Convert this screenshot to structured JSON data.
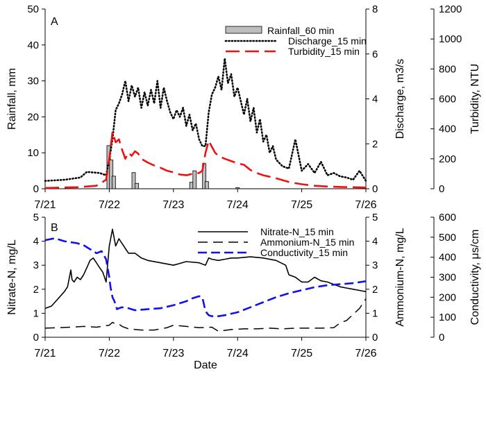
{
  "chart_data": [
    {
      "panel_label": "A",
      "type": "line",
      "x_ticks": [
        "7/21",
        "7/22",
        "7/23",
        "7/24",
        "7/25",
        "7/26"
      ],
      "xlim": [
        0,
        5
      ],
      "axes": {
        "left": {
          "label": "Rainfall, mm",
          "lim": [
            0,
            50
          ],
          "ticks": [
            0,
            10,
            20,
            30,
            40,
            50
          ]
        },
        "right1": {
          "label": "Discharge, m3/s",
          "lim": [
            0,
            8
          ],
          "ticks": [
            0,
            2,
            4,
            6,
            8
          ]
        },
        "right2": {
          "label": "Turbidity, NTU",
          "lim": [
            0,
            1200
          ],
          "ticks": [
            0,
            200,
            400,
            600,
            800,
            1000,
            1200
          ]
        }
      },
      "legend": [
        "Rainfall_60 min",
        "Discharge_15 min",
        "Turbidity_15 min"
      ],
      "series": [
        {
          "name": "Rainfall_60 min",
          "kind": "bar",
          "axis": "left",
          "color": "#bdbdbd",
          "x": [
            0.99,
            1.03,
            1.07,
            1.38,
            1.43,
            2.28,
            2.33,
            2.48,
            2.52,
            3.0
          ],
          "values": [
            12,
            8,
            3.5,
            4.5,
            1.5,
            1.8,
            5,
            7,
            2,
            0.3
          ]
        },
        {
          "name": "Discharge_15 min",
          "kind": "line",
          "style": "dotted",
          "axis": "right1",
          "color": "#000000",
          "x": [
            0,
            0.3,
            0.55,
            0.65,
            0.85,
            0.95,
            1.0,
            1.05,
            1.1,
            1.15,
            1.2,
            1.25,
            1.3,
            1.35,
            1.4,
            1.45,
            1.5,
            1.55,
            1.6,
            1.65,
            1.7,
            1.75,
            1.8,
            1.85,
            1.9,
            1.95,
            2.0,
            2.05,
            2.1,
            2.15,
            2.2,
            2.25,
            2.3,
            2.35,
            2.4,
            2.45,
            2.5,
            2.55,
            2.6,
            2.65,
            2.7,
            2.75,
            2.8,
            2.85,
            2.9,
            2.95,
            3.0,
            3.05,
            3.1,
            3.15,
            3.2,
            3.25,
            3.3,
            3.35,
            3.4,
            3.45,
            3.5,
            3.55,
            3.6,
            3.7,
            3.8,
            3.9,
            4.0,
            4.1,
            4.2,
            4.3,
            4.4,
            4.5,
            4.6,
            4.7,
            4.8,
            4.9,
            5.0
          ],
          "values": [
            0.35,
            0.4,
            0.5,
            0.75,
            0.7,
            0.6,
            1.3,
            2.2,
            3.5,
            3.8,
            4.2,
            4.8,
            3.9,
            4.6,
            4.1,
            4.5,
            3.6,
            4.3,
            3.7,
            4.4,
            3.8,
            4.8,
            3.6,
            4.5,
            3.9,
            3.4,
            3.1,
            3.5,
            3.2,
            3.6,
            2.8,
            3.3,
            2.6,
            2.9,
            2.2,
            1.9,
            1.9,
            3.4,
            4.2,
            4.5,
            5.0,
            4.4,
            5.8,
            4.7,
            5.1,
            4.1,
            4.5,
            3.9,
            3.3,
            4.0,
            3.0,
            3.6,
            2.5,
            3.1,
            2.1,
            2.4,
            1.6,
            1.9,
            1.3,
            1.0,
            0.9,
            2.2,
            0.8,
            1.1,
            0.7,
            1.2,
            0.6,
            0.7,
            0.55,
            0.5,
            0.4,
            0.8,
            0.35
          ]
        },
        {
          "name": "Turbidity_15 min",
          "kind": "line",
          "style": "dashed",
          "axis": "right2",
          "color": "#ee1111",
          "x": [
            0,
            0.5,
            0.8,
            0.95,
            1.0,
            1.05,
            1.1,
            1.15,
            1.2,
            1.25,
            1.3,
            1.35,
            1.4,
            1.45,
            1.5,
            1.6,
            1.7,
            1.8,
            1.9,
            2.0,
            2.1,
            2.2,
            2.3,
            2.4,
            2.45,
            2.5,
            2.55,
            2.6,
            2.65,
            2.7,
            2.8,
            2.9,
            3.0,
            3.1,
            3.2,
            3.3,
            3.4,
            3.6,
            3.8,
            4.0,
            4.2,
            4.4,
            4.6,
            4.8,
            5.0
          ],
          "values": [
            5,
            10,
            20,
            60,
            200,
            380,
            310,
            330,
            260,
            200,
            240,
            220,
            250,
            235,
            200,
            175,
            155,
            140,
            120,
            110,
            95,
            90,
            100,
            105,
            120,
            240,
            320,
            280,
            240,
            220,
            200,
            185,
            170,
            160,
            125,
            105,
            90,
            70,
            45,
            30,
            20,
            15,
            12,
            10,
            8
          ]
        }
      ]
    },
    {
      "panel_label": "B",
      "type": "line",
      "x_ticks": [
        "7/21",
        "7/22",
        "7/23",
        "7/24",
        "7/25",
        "7/26"
      ],
      "xlim": [
        0,
        5
      ],
      "xlabel": "Date",
      "axes": {
        "left": {
          "label": "Nitrate-N, mg/L",
          "lim": [
            0,
            5
          ],
          "ticks": [
            0,
            1,
            2,
            3,
            4,
            5
          ]
        },
        "right1": {
          "label": "Ammonium-N, mg/L",
          "lim": [
            0,
            5
          ],
          "ticks": [
            0,
            1,
            2,
            3,
            4,
            5
          ]
        },
        "right2": {
          "label": "Conductivity, μs/cm",
          "lim": [
            0,
            600
          ],
          "ticks": [
            0,
            100,
            200,
            300,
            400,
            500,
            600
          ]
        }
      },
      "legend": [
        "Nitrate-N_15 min",
        "Ammonium-N_15 min",
        "Conductivity_15 min"
      ],
      "series": [
        {
          "name": "Nitrate-N_15 min",
          "kind": "line",
          "style": "solid",
          "axis": "left",
          "color": "#000000",
          "x": [
            0,
            0.1,
            0.2,
            0.3,
            0.35,
            0.4,
            0.42,
            0.45,
            0.5,
            0.55,
            0.6,
            0.65,
            0.7,
            0.75,
            0.8,
            0.85,
            0.9,
            0.95,
            1.0,
            1.05,
            1.1,
            1.15,
            1.2,
            1.25,
            1.3,
            1.4,
            1.5,
            1.6,
            1.8,
            2.0,
            2.2,
            2.4,
            2.5,
            2.55,
            2.6,
            2.7,
            2.8,
            2.9,
            3.0,
            3.2,
            3.4,
            3.6,
            3.75,
            3.8,
            3.9,
            4.0,
            4.1,
            4.2,
            4.3,
            4.4,
            4.5,
            4.6,
            4.7,
            4.8,
            4.9,
            5.0
          ],
          "values": [
            1.2,
            1.3,
            1.6,
            1.9,
            2.1,
            2.8,
            2.4,
            2.3,
            2.5,
            2.4,
            2.6,
            2.9,
            3.2,
            3.3,
            3.1,
            2.9,
            2.7,
            2.3,
            3.8,
            4.5,
            3.8,
            4.1,
            3.9,
            3.7,
            3.5,
            3.5,
            3.3,
            3.2,
            3.1,
            3.0,
            3.15,
            3.1,
            3.0,
            3.3,
            3.25,
            3.2,
            3.25,
            3.3,
            3.3,
            3.35,
            3.3,
            3.2,
            3.0,
            2.6,
            2.5,
            2.3,
            2.3,
            2.5,
            2.35,
            2.3,
            2.2,
            2.1,
            2.05,
            2.0,
            1.95,
            1.9
          ]
        },
        {
          "name": "Ammonium-N_15 min",
          "kind": "line",
          "style": "dashed",
          "axis": "right1",
          "color": "#000000",
          "x": [
            0,
            0.2,
            0.4,
            0.6,
            0.8,
            1.0,
            1.05,
            1.1,
            1.15,
            1.2,
            1.3,
            1.5,
            1.7,
            1.9,
            2.0,
            2.2,
            2.4,
            2.6,
            2.7,
            2.9,
            3.1,
            3.3,
            3.5,
            3.7,
            3.9,
            4.1,
            4.3,
            4.5,
            4.6,
            4.7,
            4.8,
            4.9,
            5.0
          ],
          "values": [
            0.38,
            0.4,
            0.42,
            0.45,
            0.42,
            0.5,
            0.62,
            0.55,
            0.55,
            0.45,
            0.35,
            0.3,
            0.3,
            0.4,
            0.5,
            0.45,
            0.4,
            0.42,
            0.25,
            0.32,
            0.35,
            0.35,
            0.38,
            0.35,
            0.38,
            0.38,
            0.38,
            0.4,
            0.6,
            0.7,
            0.95,
            1.2,
            1.6
          ]
        },
        {
          "name": "Conductivity_15 min",
          "kind": "line",
          "style": "dashed",
          "axis": "right2",
          "color": "#1111ee",
          "x": [
            0,
            0.15,
            0.3,
            0.5,
            0.6,
            0.7,
            0.8,
            0.88,
            0.95,
            1.0,
            1.02,
            1.05,
            1.08,
            1.12,
            1.15,
            1.2,
            1.3,
            1.4,
            1.6,
            1.8,
            2.0,
            2.1,
            2.2,
            2.3,
            2.4,
            2.45,
            2.5,
            2.55,
            2.6,
            2.7,
            2.8,
            3.0,
            3.2,
            3.4,
            3.6,
            3.8,
            4.0,
            4.2,
            4.4,
            4.6,
            4.8,
            5.0
          ],
          "values": [
            485,
            495,
            480,
            470,
            460,
            440,
            420,
            430,
            390,
            300,
            250,
            200,
            180,
            140,
            145,
            150,
            145,
            135,
            140,
            145,
            160,
            170,
            180,
            195,
            205,
            200,
            130,
            110,
            105,
            105,
            110,
            125,
            150,
            175,
            200,
            220,
            235,
            250,
            260,
            265,
            270,
            280
          ]
        }
      ]
    }
  ]
}
